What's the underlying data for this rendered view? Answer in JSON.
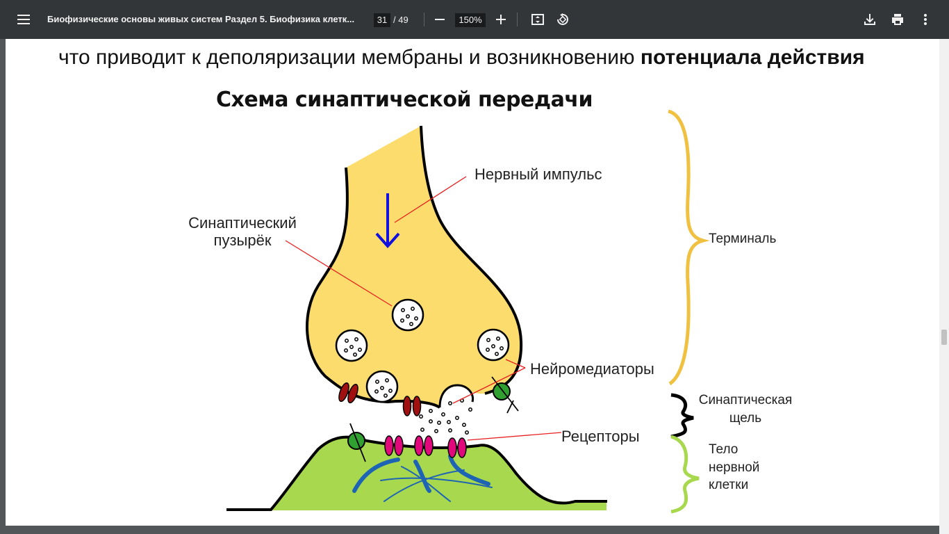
{
  "toolbar": {
    "doc_title": "Биофизические основы живых систем Раздел 5. Биофизика клетк...",
    "current_page": "31",
    "total_pages": "/ 49",
    "zoom": "150%"
  },
  "page": {
    "intro_text": "что приводит к деполяризации мембраны и возникновению ",
    "intro_bold": "потенциала действия",
    "diagram_title": "Схема синаптической передачи",
    "labels": {
      "nerve_impulse": "Нервный импульс",
      "vesicle_line1": "Синаптический",
      "vesicle_line2": "пузырёк",
      "neurotransmitters": "Нейромедиаторы",
      "receptors": "Рецепторы",
      "terminal": "Терминаль",
      "cleft_line1": "Синаптическая",
      "cleft_line2": "щель",
      "body_line1": "Тело",
      "body_line2": "нервной",
      "body_line3": "клетки"
    }
  },
  "colors": {
    "terminal_fill": "#fcdc6c",
    "cell_body_fill": "#a8d84e",
    "terminal_brace": "#f0c040",
    "body_brace": "#a8d84e",
    "arrow_blue": "#1010e0",
    "receptor_magenta": "#e0087a",
    "channel_red": "#a01010",
    "transporter_green": "#30a030",
    "fiber_blue": "#1e64b4",
    "pointer_red": "#e82020"
  }
}
